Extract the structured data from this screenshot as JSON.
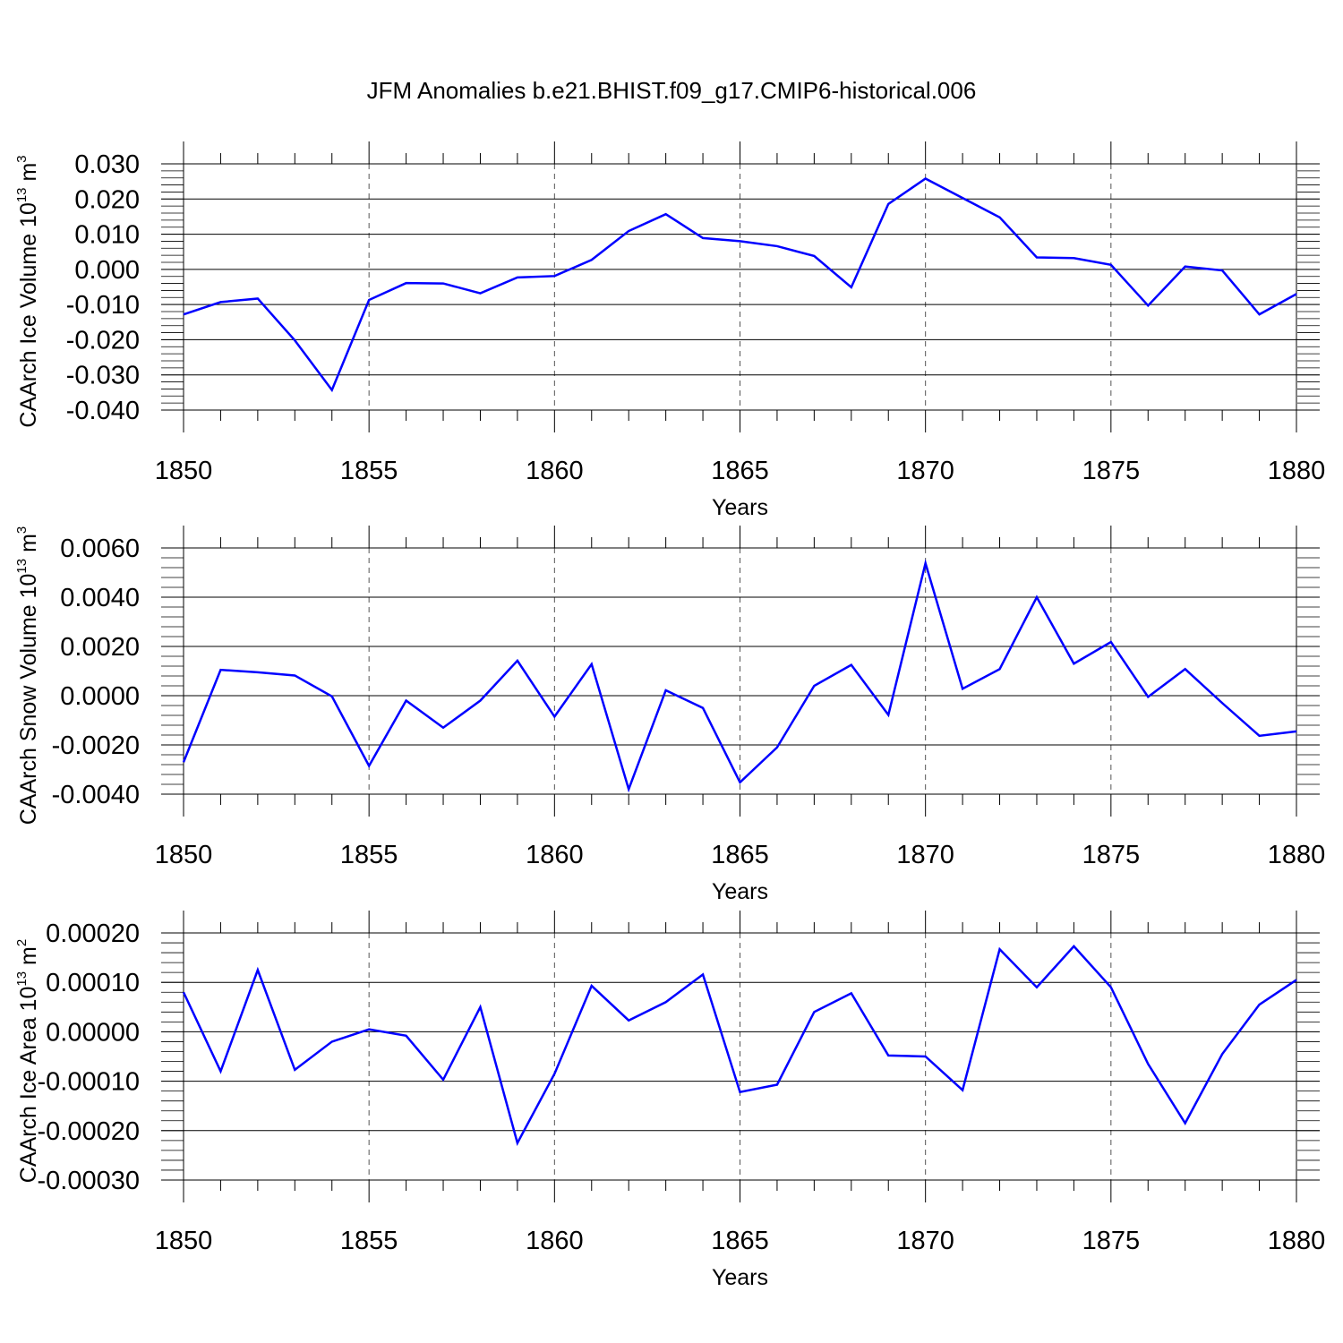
{
  "title": "JFM Anomalies b.e21.BHIST.f09_g17.CMIP6-historical.006",
  "chart_data": [
    {
      "type": "line",
      "ylabel_main": "CAArch Ice Volume 10",
      "ylabel_sup1": "13",
      "ylabel_unit": " m",
      "ylabel_sup2": "3",
      "xlabel": "Years",
      "xlim": [
        1850,
        1880
      ],
      "ylim": [
        -0.04,
        0.03
      ],
      "yticks": [
        -0.04,
        -0.03,
        -0.02,
        -0.01,
        0.0,
        0.01,
        0.02,
        0.03
      ],
      "ytick_labels": [
        "-0.040",
        "-0.030",
        "-0.020",
        "-0.010",
        "0.000",
        "0.010",
        "0.020",
        "0.030"
      ],
      "yminor_step": 0.002,
      "xticks": [
        1850,
        1855,
        1860,
        1865,
        1870,
        1875,
        1880
      ],
      "xtick_labels": [
        "1850",
        "1855",
        "1860",
        "1865",
        "1870",
        "1875",
        "1880"
      ],
      "grid_x": [
        1855,
        1860,
        1865,
        1870,
        1875
      ],
      "color": "#0000ff",
      "x": [
        1850,
        1851,
        1852,
        1853,
        1854,
        1855,
        1856,
        1857,
        1858,
        1859,
        1860,
        1861,
        1862,
        1863,
        1864,
        1865,
        1866,
        1867,
        1868,
        1869,
        1870,
        1871,
        1872,
        1873,
        1874,
        1875,
        1876,
        1877,
        1878,
        1879,
        1880
      ],
      "values": [
        -0.0128,
        -0.0093,
        -0.0083,
        -0.0202,
        -0.0343,
        -0.0087,
        -0.0039,
        -0.004,
        -0.0068,
        -0.0023,
        -0.0019,
        0.0027,
        0.0109,
        0.0157,
        0.0089,
        0.008,
        0.0066,
        0.0038,
        -0.0051,
        0.0186,
        0.0258,
        0.0203,
        0.0148,
        0.0034,
        0.0032,
        0.0013,
        -0.0103,
        0.0008,
        -0.0003,
        -0.0128,
        -0.007
      ]
    },
    {
      "type": "line",
      "ylabel_main": "CAArch Snow Volume 10",
      "ylabel_sup1": "13",
      "ylabel_unit": " m",
      "ylabel_sup2": "3",
      "xlabel": "Years",
      "xlim": [
        1850,
        1880
      ],
      "ylim": [
        -0.004,
        0.006
      ],
      "yticks": [
        -0.004,
        -0.002,
        0.0,
        0.002,
        0.004,
        0.006
      ],
      "ytick_labels": [
        "-0.0040",
        "-0.0020",
        "0.0000",
        "0.0020",
        "0.0040",
        "0.0060"
      ],
      "yminor_step": 0.0004,
      "xticks": [
        1850,
        1855,
        1860,
        1865,
        1870,
        1875,
        1880
      ],
      "xtick_labels": [
        "1850",
        "1855",
        "1860",
        "1865",
        "1870",
        "1875",
        "1880"
      ],
      "grid_x": [
        1855,
        1860,
        1865,
        1870,
        1875
      ],
      "color": "#0000ff",
      "x": [
        1850,
        1851,
        1852,
        1853,
        1854,
        1855,
        1856,
        1857,
        1858,
        1859,
        1860,
        1861,
        1862,
        1863,
        1864,
        1865,
        1866,
        1867,
        1868,
        1869,
        1870,
        1871,
        1872,
        1873,
        1874,
        1875,
        1876,
        1877,
        1878,
        1879,
        1880
      ],
      "values": [
        -0.0027,
        0.00105,
        0.00095,
        0.00082,
        -3e-05,
        -0.00285,
        -0.0002,
        -0.0013,
        -0.0002,
        0.00142,
        -0.00085,
        0.00128,
        -0.0038,
        0.00022,
        -0.0005,
        -0.00352,
        -0.0021,
        0.0004,
        0.00125,
        -0.00078,
        0.00538,
        0.00028,
        0.00108,
        0.004,
        0.0013,
        0.00218,
        -5e-05,
        0.00108,
        -0.0003,
        -0.00163,
        -0.00145
      ]
    },
    {
      "type": "line",
      "ylabel_main": "CAArch Ice Area 10",
      "ylabel_sup1": "13",
      "ylabel_unit": " m",
      "ylabel_sup2": "2",
      "xlabel": "Years",
      "xlim": [
        1850,
        1880
      ],
      "ylim": [
        -0.0003,
        0.0002
      ],
      "yticks": [
        -0.0003,
        -0.0002,
        -0.0001,
        0.0,
        0.0001,
        0.0002
      ],
      "ytick_labels": [
        "-0.00030",
        "-0.00020",
        "-0.00010",
        "0.00000",
        "0.00010",
        "0.00020"
      ],
      "yminor_step": 2e-05,
      "xticks": [
        1850,
        1855,
        1860,
        1865,
        1870,
        1875,
        1880
      ],
      "xtick_labels": [
        "1850",
        "1855",
        "1860",
        "1865",
        "1870",
        "1875",
        "1880"
      ],
      "grid_x": [
        1855,
        1860,
        1865,
        1870,
        1875
      ],
      "color": "#0000ff",
      "x": [
        1850,
        1851,
        1852,
        1853,
        1854,
        1855,
        1856,
        1857,
        1858,
        1859,
        1860,
        1861,
        1862,
        1863,
        1864,
        1865,
        1866,
        1867,
        1868,
        1869,
        1870,
        1871,
        1872,
        1873,
        1874,
        1875,
        1876,
        1877,
        1878,
        1879,
        1880
      ],
      "values": [
        8e-05,
        -8e-05,
        0.000125,
        -7.7e-05,
        -2e-05,
        5e-06,
        -8e-06,
        -9.7e-05,
        5e-05,
        -0.000225,
        -8.5e-05,
        9.3e-05,
        2.3e-05,
        6e-05,
        0.000116,
        -0.000122,
        -0.000107,
        4e-05,
        7.8e-05,
        -4.8e-05,
        -5e-05,
        -0.000118,
        0.000167,
        9e-05,
        0.000173,
        9e-05,
        -6.5e-05,
        -0.000185,
        -4.5e-05,
        5.5e-05,
        0.000105
      ]
    }
  ]
}
